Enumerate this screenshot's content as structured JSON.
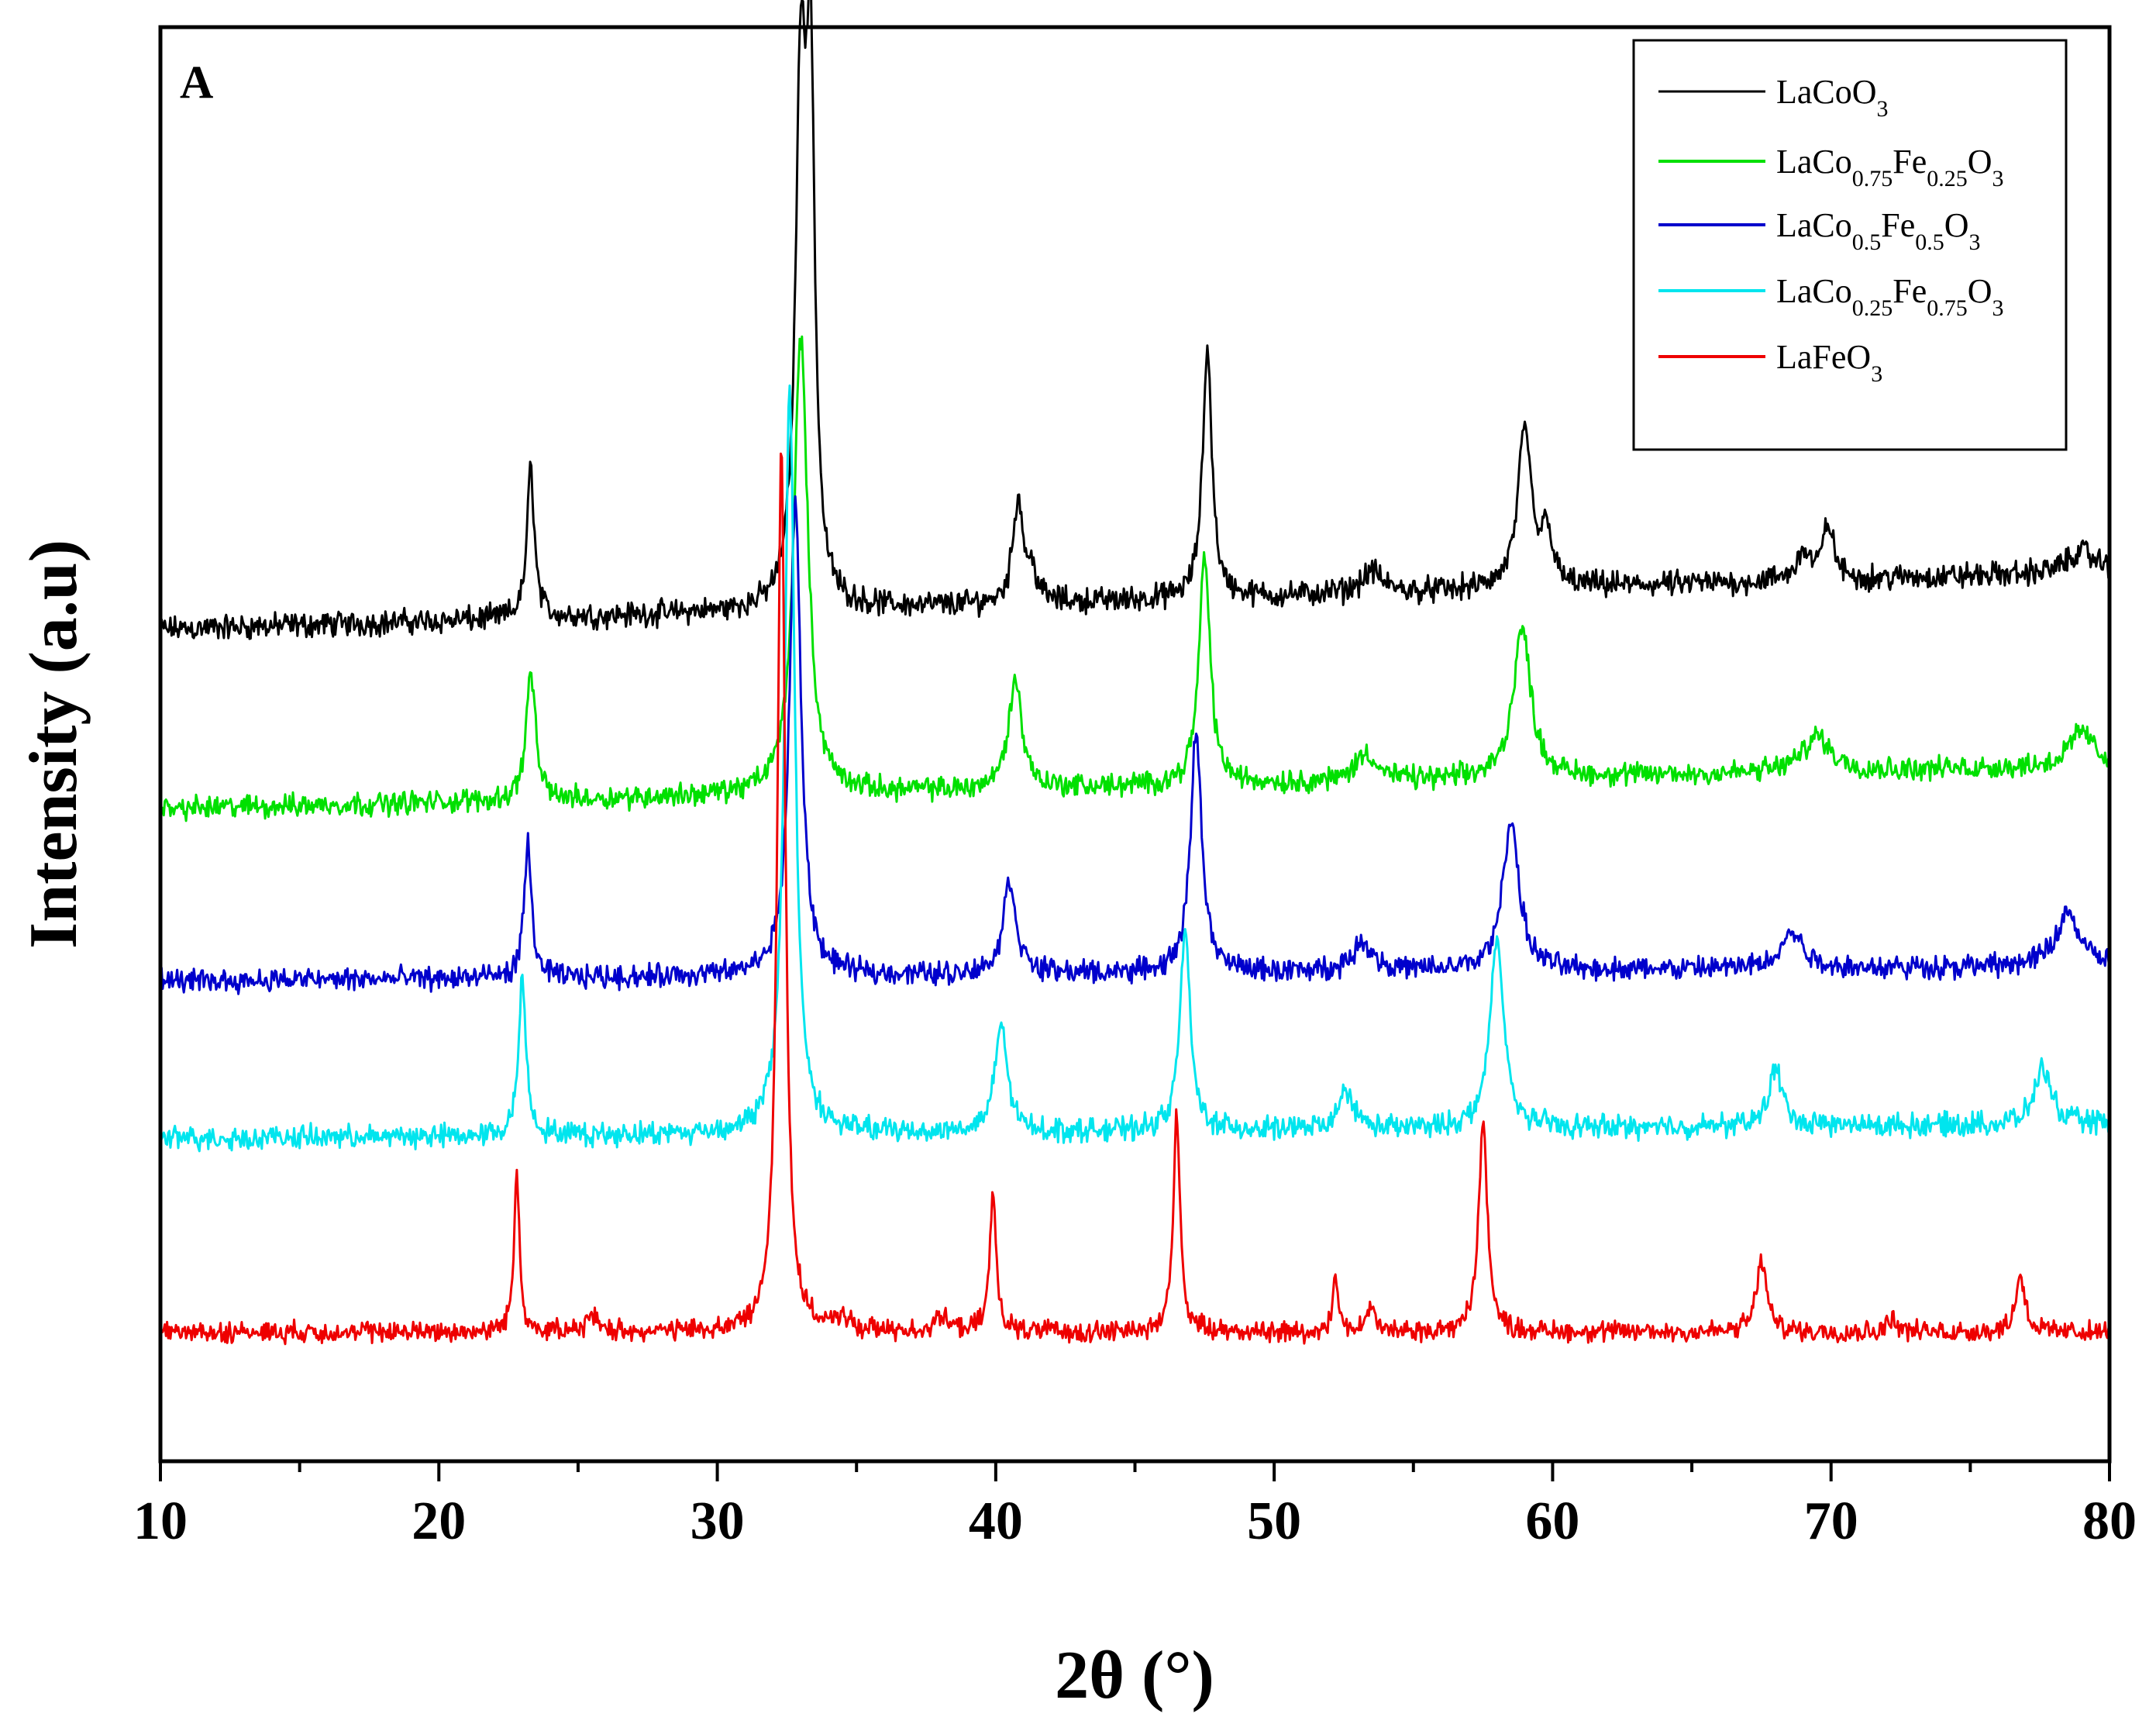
{
  "chart_data": {
    "type": "line",
    "panel_label": "A",
    "xlabel": "2θ (°)",
    "ylabel": "Intensity (a.u)",
    "xlim": [
      10,
      80
    ],
    "ylim": [
      0,
      100
    ],
    "x_ticks": [
      10,
      20,
      30,
      40,
      50,
      60,
      70,
      80
    ],
    "y_ticks_shown": false,
    "legend_position": "top-right",
    "series": [
      {
        "name": "LaCoO3",
        "legend_parts": [
          [
            "LaCoO",
            "n"
          ],
          [
            "3",
            "sub"
          ]
        ],
        "color": "#000000",
        "baseline_start": 58,
        "baseline_end": 62,
        "noise": 1.1,
        "peaks": [
          [
            23.3,
            10.5,
            0.16
          ],
          [
            33.0,
            36,
            0.22
          ],
          [
            33.35,
            34,
            0.18
          ],
          [
            40.8,
            7.3,
            0.22
          ],
          [
            41.3,
            2,
            0.2
          ],
          [
            47.6,
            17.5,
            0.2
          ],
          [
            53.5,
            1.5,
            0.45
          ],
          [
            59.0,
            11,
            0.3
          ],
          [
            59.8,
            4,
            0.2
          ],
          [
            69.0,
            2,
            0.3
          ],
          [
            69.9,
            4,
            0.22
          ],
          [
            79.0,
            1.5,
            0.6
          ]
        ]
      },
      {
        "name": "LaCo0.75Fe0.25O3",
        "legend_parts": [
          [
            "LaCo",
            "n"
          ],
          [
            "0.75",
            "sub"
          ],
          [
            "Fe",
            "n"
          ],
          [
            "0.25",
            "sub"
          ],
          [
            "O",
            "n"
          ],
          [
            "3",
            "sub"
          ]
        ],
        "color": "#00e000",
        "baseline_start": 45.5,
        "baseline_end": 48.5,
        "noise": 1.0,
        "peaks": [
          [
            23.3,
            9,
            0.2
          ],
          [
            33.0,
            32,
            0.3
          ],
          [
            40.7,
            7.5,
            0.3
          ],
          [
            47.5,
            16,
            0.24
          ],
          [
            53.3,
            2,
            0.45
          ],
          [
            58.9,
            10.5,
            0.38
          ],
          [
            69.5,
            2.5,
            0.6
          ],
          [
            79.0,
            2.5,
            0.5
          ]
        ]
      },
      {
        "name": "LaCo0.5Fe0.5O3",
        "legend_parts": [
          [
            "LaCo",
            "n"
          ],
          [
            "0.5",
            "sub"
          ],
          [
            "Fe",
            "n"
          ],
          [
            "0.5",
            "sub"
          ],
          [
            "O",
            "n"
          ],
          [
            "3",
            "sub"
          ]
        ],
        "color": "#0000cc",
        "baseline_start": 33.5,
        "baseline_end": 34.5,
        "noise": 1.0,
        "peaks": [
          [
            23.2,
            9.3,
            0.16
          ],
          [
            32.8,
            33,
            0.25
          ],
          [
            40.5,
            6.5,
            0.28
          ],
          [
            47.2,
            17,
            0.24
          ],
          [
            53.2,
            2,
            0.45
          ],
          [
            58.5,
            10.5,
            0.35
          ],
          [
            68.6,
            2.5,
            0.5
          ],
          [
            78.5,
            3.8,
            0.5
          ]
        ]
      },
      {
        "name": "LaCo0.25Fe0.75O3",
        "legend_parts": [
          [
            "LaCo",
            "n"
          ],
          [
            "0.25",
            "sub"
          ],
          [
            "Fe",
            "n"
          ],
          [
            "0.75",
            "sub"
          ],
          [
            "O",
            "n"
          ],
          [
            "3",
            "sub"
          ]
        ],
        "color": "#00e5ee",
        "baseline_start": 22.5,
        "baseline_end": 23.5,
        "noise": 1.0,
        "peaks": [
          [
            23.0,
            11,
            0.16
          ],
          [
            32.6,
            52,
            0.22
          ],
          [
            40.2,
            7.5,
            0.26
          ],
          [
            46.8,
            14,
            0.22
          ],
          [
            52.6,
            2.8,
            0.3
          ],
          [
            58.0,
            13,
            0.3
          ],
          [
            68.0,
            4,
            0.3
          ],
          [
            77.6,
            4,
            0.35
          ]
        ]
      },
      {
        "name": "LaFeO3",
        "legend_parts": [
          [
            "LaFeO",
            "n"
          ],
          [
            "3",
            "sub"
          ]
        ],
        "color": "#ee0000",
        "baseline_start": 9,
        "baseline_end": 9,
        "noise": 0.9,
        "peaks": [
          [
            22.8,
            11,
            0.12
          ],
          [
            25.5,
            1,
            0.25
          ],
          [
            32.3,
            62,
            0.17
          ],
          [
            34.5,
            1,
            0.25
          ],
          [
            38.0,
            1,
            0.3
          ],
          [
            39.9,
            9.5,
            0.14
          ],
          [
            46.5,
            15,
            0.15
          ],
          [
            52.2,
            4,
            0.12
          ],
          [
            53.5,
            2,
            0.15
          ],
          [
            57.5,
            15,
            0.18
          ],
          [
            67.5,
            5,
            0.22
          ],
          [
            72.2,
            1,
            0.2
          ],
          [
            76.8,
            4,
            0.2
          ]
        ]
      }
    ]
  }
}
